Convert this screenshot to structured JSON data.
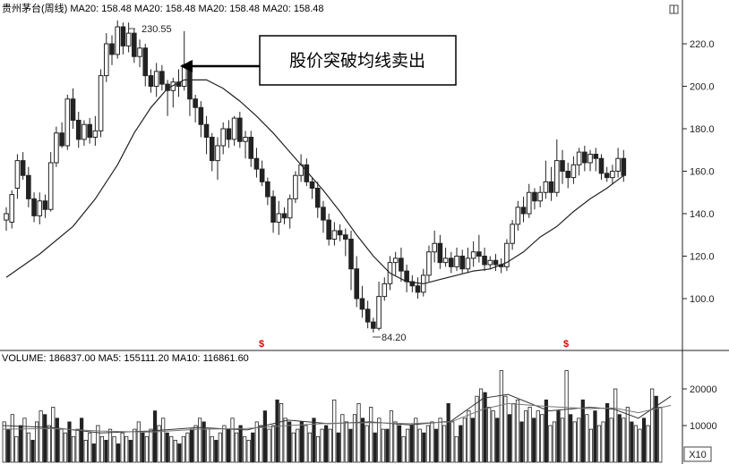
{
  "header": {
    "main": "贵州茅台(周线) MA20: 158.48 MA20: 158.48 MA20: 158.48 MA20: 158.48",
    "volume": "VOLUME: 186837.00 MA5: 155111.20 MA10: 116861.60"
  },
  "annotation": {
    "text": "股价突破均线卖出"
  },
  "labels": {
    "peak": "230.55",
    "trough": "84.20",
    "unit": "X10",
    "marker": "$"
  },
  "colors": {
    "up": "#ffffff",
    "down": "#222222",
    "line": "#222222",
    "marker": "#e00000"
  },
  "chart_data": [
    {
      "type": "candlestick",
      "y_ticks": [
        "100.0",
        "120.0",
        "140.0",
        "160.0",
        "180.0",
        "200.0",
        "220.0"
      ],
      "ylim": [
        80,
        236
      ],
      "candles": [
        [
          137,
          140,
          132,
          143
        ],
        [
          136,
          149,
          133,
          151
        ],
        [
          152,
          165,
          147,
          168
        ],
        [
          165,
          158,
          156,
          169
        ],
        [
          158,
          147,
          143,
          162
        ],
        [
          147,
          139,
          136,
          150
        ],
        [
          139,
          146,
          135,
          150
        ],
        [
          146,
          142,
          138,
          149
        ],
        [
          142,
          164,
          141,
          169
        ],
        [
          164,
          178,
          162,
          181
        ],
        [
          178,
          172,
          171,
          183
        ],
        [
          172,
          194,
          170,
          196
        ],
        [
          194,
          184,
          180,
          199
        ],
        [
          184,
          175,
          171,
          188
        ],
        [
          175,
          182,
          172,
          184
        ],
        [
          182,
          176,
          173,
          185
        ],
        [
          176,
          179,
          172,
          186
        ],
        [
          179,
          205,
          176,
          208
        ],
        [
          205,
          220,
          202,
          225
        ],
        [
          220,
          215,
          210,
          224
        ],
        [
          215,
          228,
          213,
          231
        ],
        [
          228,
          219,
          215,
          230
        ],
        [
          219,
          225,
          216,
          230
        ],
        [
          225,
          214,
          211,
          227
        ],
        [
          214,
          218,
          209,
          222
        ],
        [
          218,
          205,
          200,
          220
        ],
        [
          205,
          200,
          197,
          208
        ],
        [
          200,
          207,
          195,
          211
        ],
        [
          207,
          201,
          198,
          210
        ],
        [
          201,
          198,
          186,
          203
        ],
        [
          198,
          202,
          190,
          204
        ],
        [
          202,
          200,
          195,
          208
        ],
        [
          200,
          210,
          198,
          226
        ],
        [
          210,
          194,
          186,
          212
        ],
        [
          194,
          190,
          183,
          196
        ],
        [
          190,
          182,
          176,
          193
        ],
        [
          182,
          176,
          168,
          186
        ],
        [
          176,
          165,
          160,
          178
        ],
        [
          165,
          172,
          156,
          176
        ],
        [
          172,
          180,
          168,
          183
        ],
        [
          180,
          175,
          171,
          184
        ],
        [
          175,
          185,
          172,
          186
        ],
        [
          185,
          174,
          171,
          188
        ],
        [
          174,
          176,
          166,
          179
        ],
        [
          176,
          166,
          162,
          179
        ],
        [
          166,
          161,
          157,
          171
        ],
        [
          161,
          155,
          153,
          165
        ],
        [
          155,
          148,
          144,
          157
        ],
        [
          148,
          136,
          131,
          151
        ],
        [
          136,
          140,
          130,
          146
        ],
        [
          140,
          138,
          135,
          143
        ],
        [
          138,
          147,
          133,
          149
        ],
        [
          147,
          158,
          145,
          160
        ],
        [
          158,
          163,
          155,
          168
        ],
        [
          163,
          155,
          153,
          166
        ],
        [
          155,
          152,
          147,
          157
        ],
        [
          152,
          143,
          138,
          155
        ],
        [
          143,
          137,
          131,
          146
        ],
        [
          137,
          128,
          125,
          140
        ],
        [
          128,
          132,
          125,
          136
        ],
        [
          132,
          130,
          127,
          135
        ],
        [
          130,
          128,
          120,
          133
        ],
        [
          128,
          114,
          104,
          132
        ],
        [
          114,
          100,
          96,
          120
        ],
        [
          100,
          95,
          91,
          106
        ],
        [
          95,
          89,
          86,
          99
        ],
        [
          89,
          86,
          84,
          91
        ],
        [
          86,
          101,
          85,
          108
        ],
        [
          101,
          107,
          99,
          110
        ],
        [
          107,
          117,
          104,
          120
        ],
        [
          117,
          119,
          111,
          122
        ],
        [
          119,
          113,
          108,
          124
        ],
        [
          113,
          108,
          103,
          116
        ],
        [
          108,
          106,
          103,
          111
        ],
        [
          106,
          103,
          100,
          110
        ],
        [
          103,
          111,
          101,
          114
        ],
        [
          111,
          122,
          108,
          125
        ],
        [
          122,
          126,
          117,
          132
        ],
        [
          126,
          117,
          114,
          130
        ],
        [
          117,
          119,
          115,
          124
        ],
        [
          119,
          115,
          112,
          122
        ],
        [
          115,
          120,
          113,
          124
        ],
        [
          120,
          114,
          112,
          123
        ],
        [
          114,
          119,
          112,
          124
        ],
        [
          119,
          122,
          115,
          127
        ],
        [
          122,
          120,
          117,
          130
        ],
        [
          120,
          116,
          113,
          124
        ],
        [
          116,
          118,
          114,
          120
        ],
        [
          118,
          116,
          113,
          121
        ],
        [
          116,
          115,
          112,
          119
        ],
        [
          115,
          126,
          113,
          128
        ],
        [
          126,
          135,
          123,
          137
        ],
        [
          135,
          143,
          132,
          146
        ],
        [
          143,
          140,
          136,
          148
        ],
        [
          140,
          150,
          138,
          154
        ],
        [
          150,
          146,
          142,
          152
        ],
        [
          146,
          150,
          143,
          153
        ],
        [
          150,
          155,
          147,
          165
        ],
        [
          155,
          150,
          146,
          162
        ],
        [
          150,
          165,
          148,
          175
        ],
        [
          165,
          160,
          154,
          170
        ],
        [
          160,
          157,
          152,
          164
        ],
        [
          157,
          163,
          154,
          167
        ],
        [
          163,
          169,
          158,
          171
        ],
        [
          169,
          164,
          160,
          172
        ],
        [
          164,
          168,
          160,
          170
        ],
        [
          168,
          166,
          160,
          171
        ],
        [
          166,
          159,
          156,
          168
        ],
        [
          159,
          157,
          155,
          162
        ],
        [
          157,
          160,
          154,
          163
        ],
        [
          160,
          166,
          157,
          171
        ],
        [
          166,
          158,
          155,
          170
        ]
      ],
      "ma20": [
        [
          0,
          110
        ],
        [
          6,
          121
        ],
        [
          12,
          134
        ],
        [
          16,
          147
        ],
        [
          20,
          163
        ],
        [
          23,
          178
        ],
        [
          26,
          190
        ],
        [
          29,
          199
        ],
        [
          32,
          203
        ],
        [
          36,
          203
        ],
        [
          39,
          199
        ],
        [
          42,
          193
        ],
        [
          45,
          186
        ],
        [
          48,
          178
        ],
        [
          51,
          169
        ],
        [
          54,
          160
        ],
        [
          57,
          151
        ],
        [
          60,
          141
        ],
        [
          63,
          130
        ],
        [
          66,
          120
        ],
        [
          69,
          112
        ],
        [
          72,
          108
        ],
        [
          75,
          107
        ],
        [
          78,
          109
        ],
        [
          81,
          111
        ],
        [
          84,
          113
        ],
        [
          87,
          114
        ],
        [
          90,
          117
        ],
        [
          93,
          122
        ],
        [
          96,
          129
        ],
        [
          99,
          134
        ],
        [
          102,
          141
        ],
        [
          105,
          147
        ],
        [
          108,
          152
        ],
        [
          111,
          158
        ]
      ]
    },
    {
      "type": "bar",
      "y_ticks": [
        "10000",
        "20000"
      ],
      "ylim": [
        0,
        26000
      ],
      "volumes": [
        11000,
        9000,
        13000,
        7000,
        10000,
        12000,
        8000,
        6000,
        11000,
        14000,
        13000,
        10000,
        15000,
        12000,
        9000,
        8000,
        11000,
        7000,
        9000,
        12000,
        6000,
        8000,
        5000,
        10000,
        7000,
        6000,
        9000,
        7000,
        5000,
        8000,
        7000,
        6000,
        9000,
        11000,
        8000,
        7000,
        9000,
        14000,
        10000,
        12000,
        8000,
        7000,
        6000,
        5000,
        7000,
        8000,
        9000,
        10000,
        12000,
        11000,
        9000,
        7000,
        6000,
        8000,
        10000,
        9000,
        12000,
        8000,
        10000,
        7000,
        6000,
        8000,
        11000,
        10000,
        14000,
        9000,
        10000,
        17000,
        16000,
        12000,
        11000,
        8000,
        9000,
        11000,
        10000,
        8000,
        12000,
        7000,
        9000,
        10000,
        9000,
        17000,
        8000,
        13000,
        11000,
        9000,
        13000,
        16000,
        12000,
        10000,
        15000,
        8000,
        12000,
        9000,
        9000,
        14000,
        11000,
        10000,
        7000,
        9000,
        10000,
        12000,
        9000,
        8000,
        10000,
        11000,
        9000,
        12000,
        10000,
        16000,
        11000,
        7000,
        10000,
        12000,
        14000,
        12000,
        18000,
        20000,
        19000,
        15000,
        14000,
        12000,
        25000,
        18000,
        13000,
        16000,
        17000,
        11000,
        14000,
        15000,
        12000,
        14000,
        13000,
        17000,
        10000,
        11000,
        14000,
        12000,
        25000,
        13000,
        11000,
        12000,
        17000,
        13000,
        9000,
        14000,
        10000,
        11000,
        16000,
        12000,
        20000,
        13000,
        12000,
        15000,
        11000,
        10000,
        9000,
        12000,
        10000,
        20000,
        18000,
        15000
      ],
      "ma_line_a": [
        [
          0,
          10000
        ],
        [
          12,
          9500
        ],
        [
          24,
          8000
        ],
        [
          36,
          8500
        ],
        [
          48,
          9500
        ],
        [
          60,
          8800
        ],
        [
          70,
          11500
        ],
        [
          80,
          10500
        ],
        [
          90,
          11000
        ],
        [
          100,
          10200
        ],
        [
          110,
          11200
        ],
        [
          118,
          17500
        ],
        [
          124,
          18500
        ],
        [
          134,
          14000
        ],
        [
          144,
          15000
        ],
        [
          150,
          14500
        ],
        [
          156,
          12000
        ],
        [
          164,
          18000
        ]
      ],
      "ma_line_b": [
        [
          0,
          9000
        ],
        [
          12,
          9200
        ],
        [
          24,
          8500
        ],
        [
          36,
          8200
        ],
        [
          48,
          9000
        ],
        [
          60,
          9200
        ],
        [
          70,
          10000
        ],
        [
          80,
          10600
        ],
        [
          90,
          10800
        ],
        [
          100,
          10500
        ],
        [
          110,
          11000
        ],
        [
          118,
          14500
        ],
        [
          124,
          16000
        ],
        [
          134,
          15200
        ],
        [
          144,
          14600
        ],
        [
          150,
          14800
        ],
        [
          156,
          13500
        ],
        [
          164,
          15500
        ]
      ]
    }
  ]
}
